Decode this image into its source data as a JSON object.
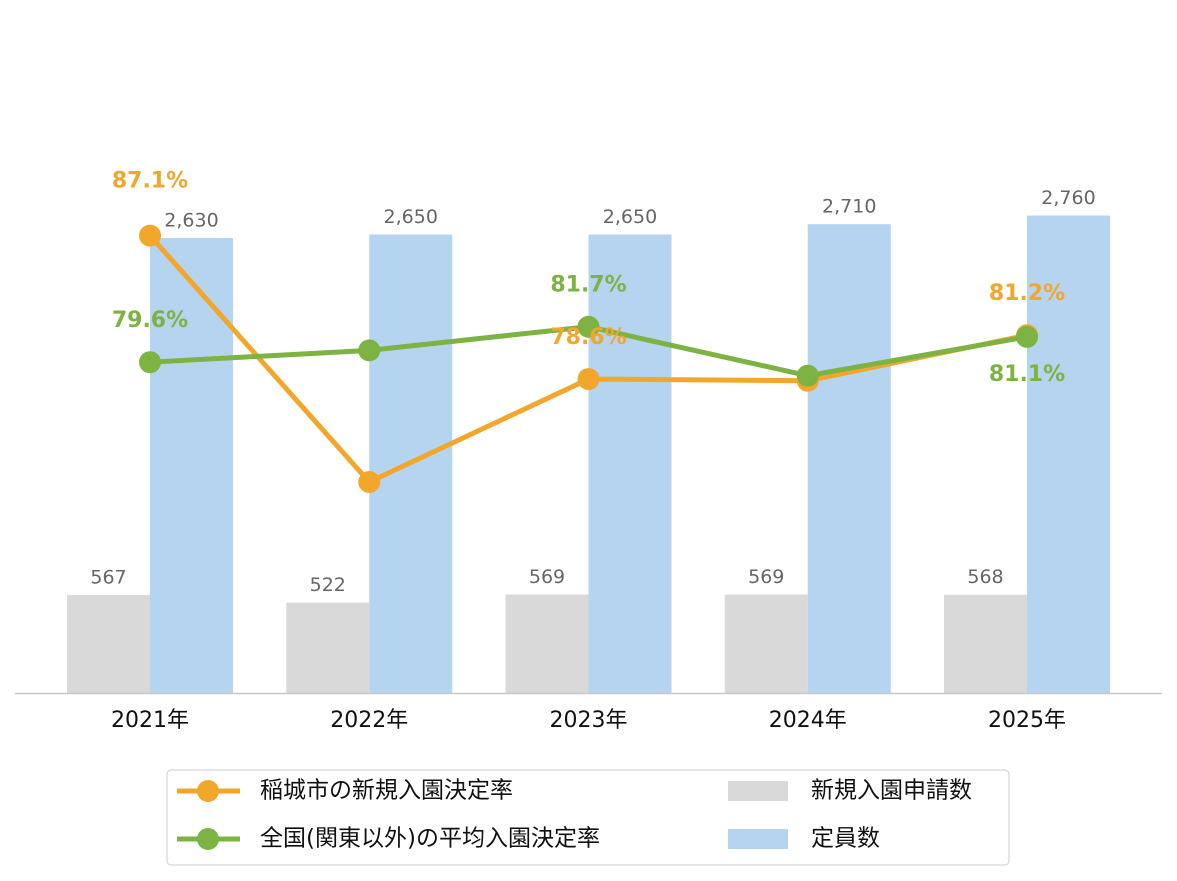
{
  "chart_data": {
    "type": "bar",
    "categories": [
      "2021年",
      "2022年",
      "2023年",
      "2024年",
      "2025年"
    ],
    "ylim": [
      0,
      4000
    ],
    "y2lim": [
      60,
      101
    ],
    "legend": "bottom",
    "series": [
      {
        "name": "新規入園申請数",
        "type": "bar",
        "color": "#d9d9d9",
        "values": [
          567,
          522,
          569,
          569,
          568
        ]
      },
      {
        "name": "定員数",
        "type": "bar",
        "color": "#b4d4ef",
        "values": [
          2630,
          2650,
          2650,
          2710,
          2760
        ],
        "value_labels": [
          "2,630",
          "2,650",
          "2,650",
          "2,710",
          "2,760"
        ]
      },
      {
        "name": "稲城市の新規入園決定率",
        "type": "line",
        "axis": "y2",
        "color": "#f2a72c",
        "values": [
          87.1,
          72.5,
          78.6,
          78.5,
          81.2
        ],
        "value_labels": [
          "87.1%",
          null,
          "78.6%",
          null,
          "81.2%"
        ]
      },
      {
        "name": "全国(関東以外)の平均入園決定率",
        "type": "line",
        "axis": "y2",
        "color": "#7cb342",
        "values": [
          79.6,
          80.3,
          81.7,
          78.8,
          81.1
        ],
        "value_labels": [
          "79.6%",
          null,
          "81.7%",
          null,
          "81.1%"
        ]
      }
    ]
  }
}
